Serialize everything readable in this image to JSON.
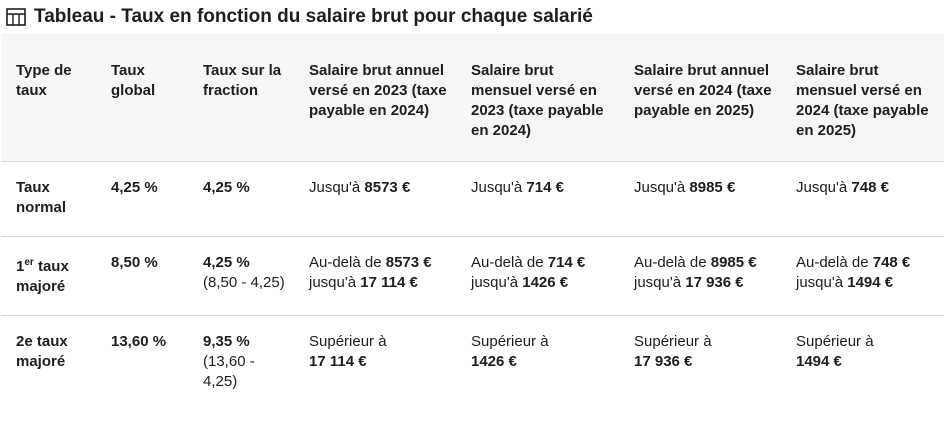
{
  "title": "Tableau - Taux en fonction du salaire brut pour chaque salarié",
  "columns": [
    "Type de taux",
    "Taux global",
    "Taux sur la fraction",
    "Salaire brut annuel versé en 2023 (taxe payable en 2024)",
    "Salaire brut mensuel versé en 2023 (taxe payable en 2024)",
    "Salaire brut annuel versé en 2024 (taxe payable en 2025)",
    "Salaire brut mensuel versé en 2024 (taxe payable en 2025)"
  ],
  "rows": [
    {
      "type": "Taux normal",
      "global": "4,25 %",
      "fraction": "4,25 %",
      "fraction_detail": "",
      "a2023": {
        "pre": "Jusqu'à ",
        "v1": "8573 €",
        "mid": "",
        "v2": ""
      },
      "m2023": {
        "pre": "Jusqu'à ",
        "v1": "714 €",
        "mid": "",
        "v2": ""
      },
      "a2024": {
        "pre": "Jusqu'à ",
        "v1": "8985 €",
        "mid": "",
        "v2": ""
      },
      "m2024": {
        "pre": "Jusqu'à ",
        "v1": "748 €",
        "mid": "",
        "v2": ""
      }
    },
    {
      "type_main": "1",
      "type_sup": "er",
      "type_rest": " taux majoré",
      "global": "8,50 %",
      "fraction": "4,25 %",
      "fraction_detail": "(8,50 - 4,25)",
      "a2023": {
        "pre": "Au-delà de ",
        "v1": "8573 €",
        "mid": " jusqu'à ",
        "v2": "17 114 €"
      },
      "m2023": {
        "pre": "Au-delà de ",
        "v1": "714 €",
        "mid": " jusqu'à ",
        "v2": "1426 €"
      },
      "a2024": {
        "pre": "Au-delà de ",
        "v1": "8985 €",
        "mid": " jusqu'à ",
        "v2": "17 936 €"
      },
      "m2024": {
        "pre": "Au-delà de ",
        "v1": "748 €",
        "mid": " jusqu'à ",
        "v2": "1494 €"
      }
    },
    {
      "type": "2e taux majoré",
      "global": "13,60 %",
      "fraction": "9,35 %",
      "fraction_detail": "(13,60 - 4,25)",
      "a2023": {
        "pre": "Supérieur à ",
        "v1": "17 114 €",
        "mid": "",
        "v2": ""
      },
      "m2023": {
        "pre": "Supérieur à ",
        "v1": "1426 €",
        "mid": "",
        "v2": ""
      },
      "a2024": {
        "pre": "Supérieur à ",
        "v1": "17 936 €",
        "mid": "",
        "v2": ""
      },
      "m2024": {
        "pre": "Supérieur à ",
        "v1": "1494 €",
        "mid": "",
        "v2": ""
      }
    }
  ]
}
